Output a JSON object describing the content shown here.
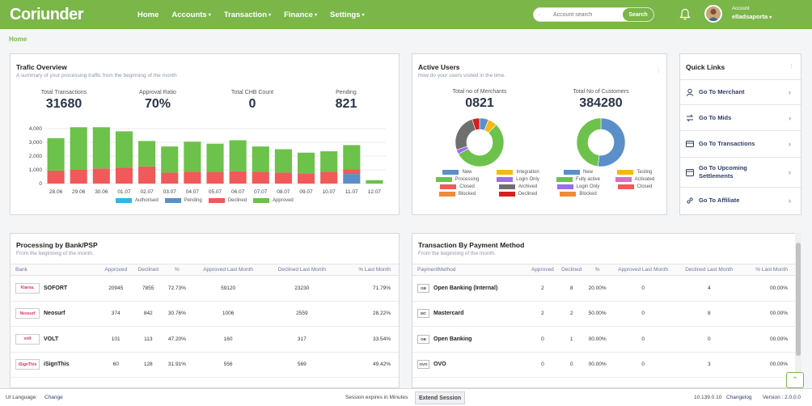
{
  "app": {
    "logo": "Coriunder",
    "nav": [
      {
        "label": "Home",
        "caret": false
      },
      {
        "label": "Accounts",
        "caret": true
      },
      {
        "label": "Transaction",
        "caret": true
      },
      {
        "label": "Finance",
        "caret": true
      },
      {
        "label": "Settings",
        "caret": true
      }
    ],
    "search": {
      "placeholder": "Account search",
      "value": "",
      "button": "Search"
    },
    "account": {
      "label": "Account",
      "user": "elladsaporta"
    },
    "colors": {
      "brand": "#7ab648",
      "nav_text": "#ffffff"
    }
  },
  "breadcrumb": "Home",
  "traffic": {
    "title": "Trafic Overview",
    "subtitle": "A summary of your processing traffic from the beginning of the month",
    "stats": [
      {
        "label": "Total Transactions",
        "value": "31680"
      },
      {
        "label": "Approval Ratio",
        "value": "70%"
      },
      {
        "label": "Total CHB Count",
        "value": "0"
      },
      {
        "label": "Pending",
        "value": "821"
      }
    ]
  },
  "active_users": {
    "title": "Active Users",
    "subtitle": "How do your users visited in the time.",
    "merchants": {
      "label": "Total no of Merchants",
      "value": "0821"
    },
    "customers": {
      "label": "Total No of Customers",
      "value": "384280"
    }
  },
  "chart_data": [
    {
      "type": "bar",
      "stacked": true,
      "categories": [
        "28.06",
        "29.06",
        "30.06",
        "01.07",
        "02.07",
        "03.07",
        "04.07",
        "05.07",
        "06.07",
        "07.07",
        "08.07",
        "09.07",
        "10.07",
        "11.07",
        "12.07"
      ],
      "ylim": [
        0,
        4000
      ],
      "yticks": [
        "0",
        "1,000",
        "2,000",
        "3,000",
        "4,000"
      ],
      "grid": true,
      "legend_position": "bottom",
      "series": [
        {
          "name": "Authorised",
          "color": "#2db8e6",
          "values": [
            0,
            0,
            0,
            0,
            0,
            0,
            0,
            0,
            0,
            0,
            0,
            0,
            0,
            0,
            0
          ]
        },
        {
          "name": "Pending",
          "color": "#5b8fc9",
          "values": [
            0,
            0,
            0,
            0,
            0,
            0,
            0,
            0,
            0,
            0,
            0,
            0,
            0,
            700,
            0
          ]
        },
        {
          "name": "Declined",
          "color": "#f05a5a",
          "values": [
            950,
            1000,
            1100,
            1150,
            1250,
            800,
            850,
            850,
            900,
            850,
            800,
            750,
            850,
            350,
            0
          ]
        },
        {
          "name": "Approved",
          "color": "#6cc24a",
          "values": [
            2350,
            3100,
            3000,
            2650,
            1850,
            1900,
            2200,
            2050,
            2250,
            1850,
            1700,
            1500,
            1500,
            1750,
            250
          ]
        }
      ]
    },
    {
      "type": "pie",
      "donut": true,
      "labels": [
        "New",
        "Integration",
        "Processing",
        "Login Only",
        "Closed",
        "Archived",
        "Blocked",
        "Declined"
      ],
      "colors": [
        "#5b8fc9",
        "#f5b915",
        "#6cc24a",
        "#9b6cf0",
        "#f05a5a",
        "#6f6f6f",
        "#f08a3a",
        "#d61f1f"
      ],
      "values": [
        6,
        6,
        55,
        3,
        0,
        25,
        0,
        5
      ]
    },
    {
      "type": "pie",
      "donut": true,
      "labels": [
        "New",
        "Testing",
        "Fully active",
        "Activated",
        "Login Only",
        "Closed",
        "Blocked"
      ],
      "colors": [
        "#5b8fc9",
        "#f5b915",
        "#6cc24a",
        "#e06bc9",
        "#9b6cf0",
        "#f05a5a",
        "#f08a3a"
      ],
      "values": [
        52,
        0,
        48,
        0,
        0,
        0,
        0
      ]
    }
  ],
  "quick_links": {
    "title": "Quick Links",
    "items": [
      {
        "label": "Go To Merchant",
        "icon": "user-icon"
      },
      {
        "label": "Go To Mids",
        "icon": "exchange-icon"
      },
      {
        "label": "Go To Transactions",
        "icon": "card-icon"
      },
      {
        "label": "Go To Upcoming Settlements",
        "icon": "calendar-icon"
      },
      {
        "label": "Go To Affiliate",
        "icon": "link-icon"
      }
    ]
  },
  "bank_table": {
    "title": "Processing by Bank/PSP",
    "subtitle": "From the beginning of the month.",
    "columns": [
      "Bank",
      "Approved",
      "Declined",
      "%",
      "Approved Last Month",
      "Declined Last Month",
      "% Last Month"
    ],
    "rows": [
      {
        "logo": "Klarna.",
        "name": "SOFORT",
        "approved": "20945",
        "declined": "7855",
        "pct": "72.73%",
        "approved_lm": "59120",
        "declined_lm": "23230",
        "pct_lm": "71.79%"
      },
      {
        "logo": "Neosurf",
        "name": "Neosurf",
        "approved": "374",
        "declined": "842",
        "pct": "30.76%",
        "approved_lm": "1006",
        "declined_lm": "2559",
        "pct_lm": "28.22%"
      },
      {
        "logo": "volt",
        "name": "VOLT",
        "approved": "101",
        "declined": "113",
        "pct": "47.20%",
        "approved_lm": "160",
        "declined_lm": "317",
        "pct_lm": "33.54%"
      },
      {
        "logo": "iSignThis",
        "name": "iSignThis",
        "approved": "60",
        "declined": "128",
        "pct": "31.91%",
        "approved_lm": "556",
        "declined_lm": "569",
        "pct_lm": "49.42%"
      }
    ]
  },
  "payment_table": {
    "title": "Transaction By Payment Method",
    "subtitle": "From the beginning of the month.",
    "columns": [
      "PaymentMethod",
      "Approved",
      "Declined",
      "%",
      "Approved Last Month",
      "Declined Last Month",
      "% Last Month"
    ],
    "rows": [
      {
        "logo": "OB",
        "name": "Open Banking (Internal)",
        "approved": "2",
        "declined": "8",
        "pct": "20.00%",
        "approved_lm": "0",
        "declined_lm": "4",
        "pct_lm": "00.00%"
      },
      {
        "logo": "MC",
        "name": "Mastercard",
        "approved": "2",
        "declined": "2",
        "pct": "50.00%",
        "approved_lm": "0",
        "declined_lm": "8",
        "pct_lm": "00.00%"
      },
      {
        "logo": "OB",
        "name": "Open Banking",
        "approved": "0",
        "declined": "1",
        "pct": "00.00%",
        "approved_lm": "0",
        "declined_lm": "0",
        "pct_lm": "00.00%"
      },
      {
        "logo": "OVO",
        "name": "OVO",
        "approved": "0",
        "declined": "0",
        "pct": "00.00%",
        "approved_lm": "0",
        "declined_lm": "3",
        "pct_lm": "00.00%"
      }
    ]
  },
  "footer": {
    "ui_language": "UI Language:",
    "change": "Change",
    "session": "Session expires in Minutes",
    "extend": "Extend Session",
    "ip": "10.139.0.10",
    "changelog": "Changelog",
    "version": "Version : 2.0.0.0"
  }
}
